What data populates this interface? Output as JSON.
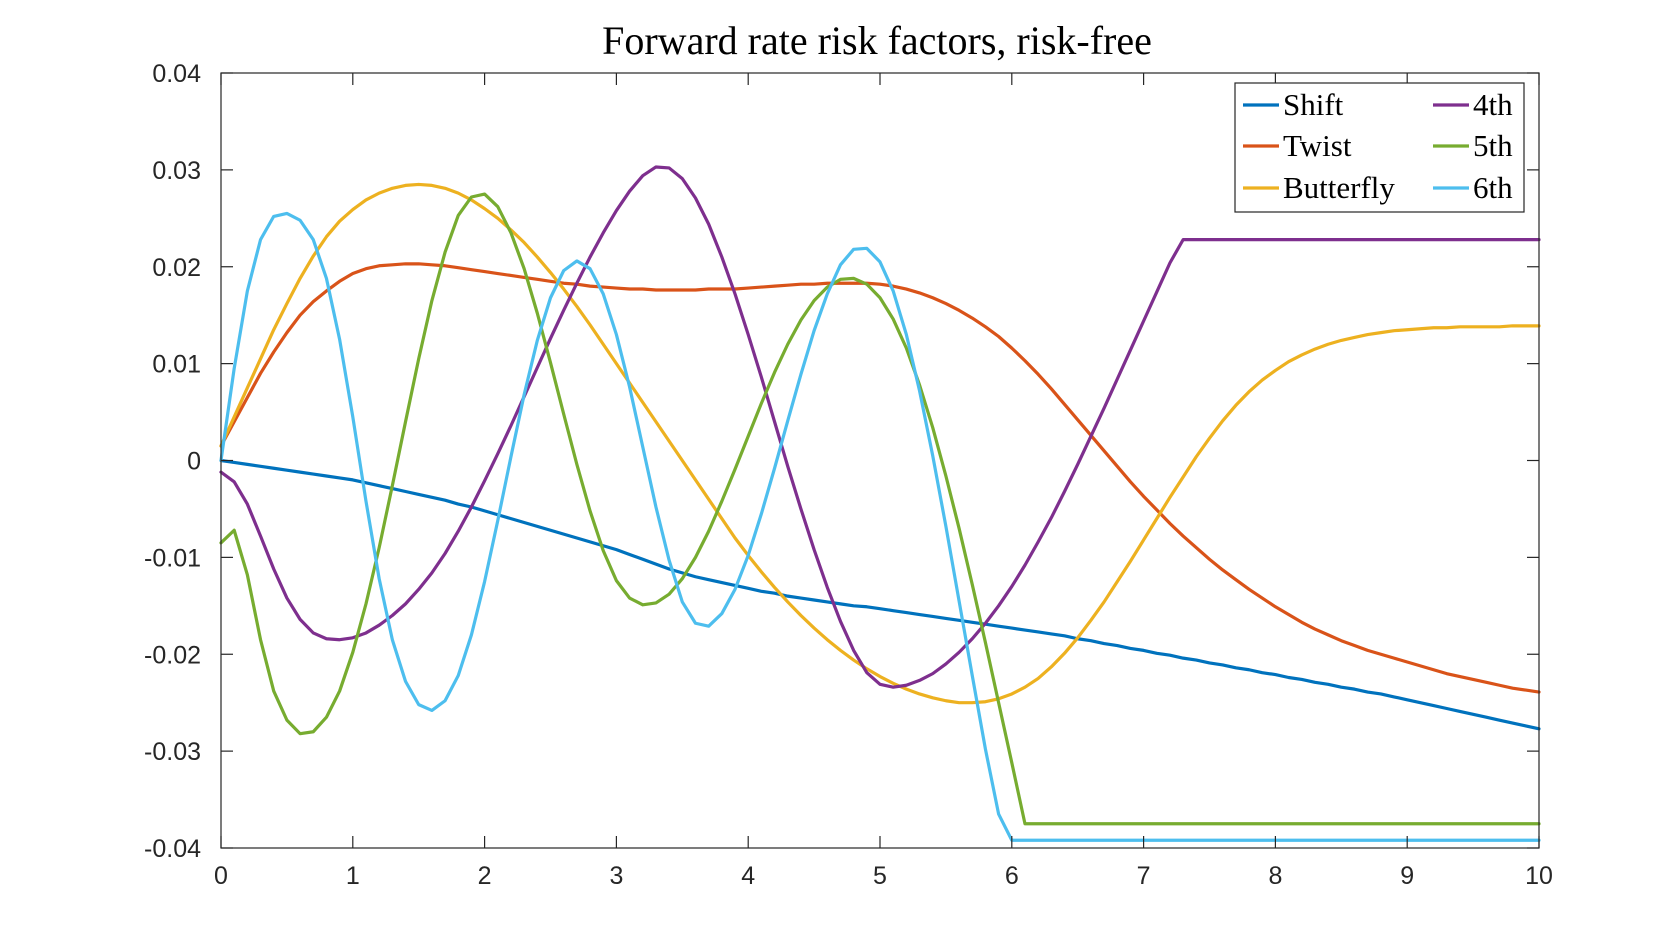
{
  "chart_data": {
    "type": "line",
    "title": "Forward rate risk factors, risk-free",
    "xlabel": "",
    "ylabel": "",
    "xlim": [
      0,
      10
    ],
    "ylim": [
      -0.04,
      0.04
    ],
    "xticks": [
      0,
      1,
      2,
      3,
      4,
      5,
      6,
      7,
      8,
      9,
      10
    ],
    "yticks": [
      -0.04,
      -0.03,
      -0.02,
      -0.01,
      0,
      0.01,
      0.02,
      0.03,
      0.04
    ],
    "xtick_labels": [
      "0",
      "1",
      "2",
      "3",
      "4",
      "5",
      "6",
      "7",
      "8",
      "9",
      "10"
    ],
    "ytick_labels": [
      "-0.04",
      "-0.03",
      "-0.02",
      "-0.01",
      "0",
      "0.01",
      "0.02",
      "0.03",
      "0.04"
    ],
    "grid": false,
    "legend_position": "top-right",
    "x": [
      0,
      0.1,
      0.2,
      0.3,
      0.4,
      0.5,
      0.6,
      0.7,
      0.8,
      0.9,
      1.0,
      1.1,
      1.2,
      1.3,
      1.4,
      1.5,
      1.6,
      1.7,
      1.8,
      1.9,
      2.0,
      2.1,
      2.2,
      2.3,
      2.4,
      2.5,
      2.6,
      2.7,
      2.8,
      2.9,
      3.0,
      3.1,
      3.2,
      3.3,
      3.4,
      3.5,
      3.6,
      3.7,
      3.8,
      3.9,
      4.0,
      4.1,
      4.2,
      4.3,
      4.4,
      4.5,
      4.6,
      4.7,
      4.8,
      4.9,
      5.0,
      5.1,
      5.2,
      5.3,
      5.4,
      5.5,
      5.6,
      5.7,
      5.8,
      5.9,
      6.0,
      6.1,
      6.2,
      6.3,
      6.4,
      6.5,
      6.6,
      6.7,
      6.8,
      6.9,
      7.0,
      7.1,
      7.2,
      7.3,
      7.4,
      7.5,
      7.6,
      7.7,
      7.8,
      7.9,
      8.0,
      8.1,
      8.2,
      8.3,
      8.4,
      8.5,
      8.6,
      8.7,
      8.8,
      8.9,
      9.0,
      9.1,
      9.2,
      9.3,
      9.4,
      9.5,
      9.6,
      9.7,
      9.8,
      9.9,
      10.0
    ],
    "series": [
      {
        "name": "Shift",
        "color": "#0072BD",
        "values": [
          0.0,
          -0.0002,
          -0.0004,
          -0.0006,
          -0.0008,
          -0.001,
          -0.0012,
          -0.0014,
          -0.0016,
          -0.0018,
          -0.002,
          -0.0023,
          -0.0026,
          -0.0029,
          -0.0032,
          -0.0035,
          -0.0038,
          -0.0041,
          -0.0045,
          -0.0048,
          -0.0052,
          -0.0056,
          -0.006,
          -0.0064,
          -0.0068,
          -0.0072,
          -0.0076,
          -0.008,
          -0.0084,
          -0.0088,
          -0.0092,
          -0.0097,
          -0.0102,
          -0.0107,
          -0.0112,
          -0.0116,
          -0.012,
          -0.0123,
          -0.0126,
          -0.0129,
          -0.0132,
          -0.0135,
          -0.0137,
          -0.014,
          -0.0142,
          -0.0144,
          -0.0146,
          -0.0148,
          -0.015,
          -0.0151,
          -0.0153,
          -0.0155,
          -0.0157,
          -0.0159,
          -0.0161,
          -0.0163,
          -0.0165,
          -0.0167,
          -0.0169,
          -0.0171,
          -0.0173,
          -0.0175,
          -0.0177,
          -0.0179,
          -0.0181,
          -0.0184,
          -0.0186,
          -0.0189,
          -0.0191,
          -0.0194,
          -0.0196,
          -0.0199,
          -0.0201,
          -0.0204,
          -0.0206,
          -0.0209,
          -0.0211,
          -0.0214,
          -0.0216,
          -0.0219,
          -0.0221,
          -0.0224,
          -0.0226,
          -0.0229,
          -0.0231,
          -0.0234,
          -0.0236,
          -0.0239,
          -0.0241,
          -0.0244,
          -0.0247,
          -0.025,
          -0.0253,
          -0.0256,
          -0.0259,
          -0.0262,
          -0.0265,
          -0.0268,
          -0.0271,
          -0.0274,
          -0.0277
        ]
      },
      {
        "name": "Twist",
        "color": "#D95319",
        "values": [
          0.0015,
          0.004,
          0.0065,
          0.009,
          0.0112,
          0.0132,
          0.015,
          0.0164,
          0.0175,
          0.0185,
          0.0193,
          0.0198,
          0.0201,
          0.0202,
          0.0203,
          0.0203,
          0.0202,
          0.0201,
          0.0199,
          0.0197,
          0.0195,
          0.0193,
          0.0191,
          0.0189,
          0.0187,
          0.0185,
          0.0183,
          0.0182,
          0.018,
          0.0179,
          0.0178,
          0.0177,
          0.0177,
          0.0176,
          0.0176,
          0.0176,
          0.0176,
          0.0177,
          0.0177,
          0.0177,
          0.0178,
          0.0179,
          0.018,
          0.0181,
          0.0182,
          0.0182,
          0.0183,
          0.0183,
          0.0183,
          0.0183,
          0.0182,
          0.018,
          0.0177,
          0.0173,
          0.0168,
          0.0162,
          0.0155,
          0.0147,
          0.0138,
          0.0128,
          0.0116,
          0.0103,
          0.0089,
          0.0074,
          0.0058,
          0.0042,
          0.0026,
          0.001,
          -0.0006,
          -0.0022,
          -0.0037,
          -0.0051,
          -0.0065,
          -0.0078,
          -0.009,
          -0.0102,
          -0.0113,
          -0.0123,
          -0.0133,
          -0.0142,
          -0.0151,
          -0.0159,
          -0.0167,
          -0.0174,
          -0.018,
          -0.0186,
          -0.0191,
          -0.0196,
          -0.02,
          -0.0204,
          -0.0208,
          -0.0212,
          -0.0216,
          -0.022,
          -0.0223,
          -0.0226,
          -0.0229,
          -0.0232,
          -0.0235,
          -0.0237,
          -0.0239
        ]
      },
      {
        "name": "Butterfly",
        "color": "#EDB120",
        "values": [
          0.0015,
          0.0045,
          0.0075,
          0.0105,
          0.0135,
          0.0162,
          0.0188,
          0.0211,
          0.0231,
          0.0247,
          0.0259,
          0.0269,
          0.0276,
          0.0281,
          0.0284,
          0.0285,
          0.0284,
          0.0281,
          0.0276,
          0.0269,
          0.026,
          0.025,
          0.0238,
          0.0225,
          0.021,
          0.0194,
          0.0177,
          0.0159,
          0.014,
          0.012,
          0.01,
          0.008,
          0.006,
          0.004,
          0.002,
          0.0,
          -0.002,
          -0.004,
          -0.006,
          -0.008,
          -0.0098,
          -0.0115,
          -0.0131,
          -0.0146,
          -0.016,
          -0.0173,
          -0.0185,
          -0.0196,
          -0.0206,
          -0.0215,
          -0.0223,
          -0.023,
          -0.0236,
          -0.0241,
          -0.0245,
          -0.0248,
          -0.025,
          -0.025,
          -0.0249,
          -0.0246,
          -0.0241,
          -0.0234,
          -0.0225,
          -0.0213,
          -0.0199,
          -0.0183,
          -0.0165,
          -0.0146,
          -0.0125,
          -0.0104,
          -0.0082,
          -0.006,
          -0.0038,
          -0.0017,
          0.0004,
          0.0023,
          0.0041,
          0.0057,
          0.0071,
          0.0083,
          0.0093,
          0.0102,
          0.0109,
          0.0115,
          0.012,
          0.0124,
          0.0127,
          0.013,
          0.0132,
          0.0134,
          0.0135,
          0.0136,
          0.0137,
          0.0137,
          0.0138,
          0.0138,
          0.0138,
          0.0138,
          0.0139,
          0.0139,
          0.0139
        ]
      },
      {
        "name": "4th",
        "color": "#7E2F8E",
        "values": [
          -0.0012,
          -0.0022,
          -0.0045,
          -0.0078,
          -0.0112,
          -0.0142,
          -0.0164,
          -0.0178,
          -0.0184,
          -0.0185,
          -0.0183,
          -0.0178,
          -0.017,
          -0.016,
          -0.0148,
          -0.0133,
          -0.0116,
          -0.0096,
          -0.0073,
          -0.0048,
          -0.0021,
          0.0007,
          0.0036,
          0.0066,
          0.0096,
          0.0126,
          0.0155,
          0.0183,
          0.021,
          0.0235,
          0.0258,
          0.0278,
          0.0294,
          0.0303,
          0.0302,
          0.0291,
          0.0271,
          0.0244,
          0.021,
          0.0172,
          0.013,
          0.0086,
          0.004,
          -0.0006,
          -0.005,
          -0.0092,
          -0.0131,
          -0.0166,
          -0.0196,
          -0.0219,
          -0.0231,
          -0.0234,
          -0.0232,
          -0.0227,
          -0.022,
          -0.021,
          -0.0198,
          -0.0184,
          -0.0168,
          -0.015,
          -0.013,
          -0.0108,
          -0.0084,
          -0.0059,
          -0.0032,
          -0.0004,
          0.0025,
          0.0054,
          0.0084,
          0.0114,
          0.0144,
          0.0174,
          0.0204,
          0.0228,
          0.0228,
          0.0228,
          0.0228,
          0.0228,
          0.0228,
          0.0228,
          0.0228,
          0.0228,
          0.0228,
          0.0228,
          0.0228,
          0.0228,
          0.0228,
          0.0228,
          0.0228,
          0.0228,
          0.0228,
          0.0228,
          0.0228,
          0.0228,
          0.0228,
          0.0228,
          0.0228,
          0.0228,
          0.0228,
          0.0228,
          0.0228
        ]
      },
      {
        "name": "5th",
        "color": "#77AC30",
        "values": [
          -0.0085,
          -0.0072,
          -0.0118,
          -0.0185,
          -0.0238,
          -0.0268,
          -0.0282,
          -0.028,
          -0.0265,
          -0.0238,
          -0.0198,
          -0.0148,
          -0.009,
          -0.0026,
          0.004,
          0.0105,
          0.0165,
          0.0215,
          0.0253,
          0.0272,
          0.0275,
          0.0262,
          0.0235,
          0.0198,
          0.0152,
          0.0101,
          0.0048,
          -0.0004,
          -0.0052,
          -0.0093,
          -0.0124,
          -0.0142,
          -0.0149,
          -0.0147,
          -0.0138,
          -0.0122,
          -0.01,
          -0.0073,
          -0.0042,
          -0.0009,
          0.0025,
          0.0059,
          0.0091,
          0.012,
          0.0145,
          0.0165,
          0.0179,
          0.0187,
          0.0188,
          0.0182,
          0.0168,
          0.0146,
          0.0116,
          0.0078,
          0.0034,
          -0.0016,
          -0.007,
          -0.0128,
          -0.0188,
          -0.025,
          -0.0312,
          -0.0375,
          -0.0375,
          -0.0375,
          -0.0375,
          -0.0375,
          -0.0375,
          -0.0375,
          -0.0375,
          -0.0375,
          -0.0375,
          -0.0375,
          -0.0375,
          -0.0375,
          -0.0375,
          -0.0375,
          -0.0375,
          -0.0375,
          -0.0375,
          -0.0375,
          -0.0375,
          -0.0375,
          -0.0375,
          -0.0375,
          -0.0375,
          -0.0375,
          -0.0375,
          -0.0375,
          -0.0375,
          -0.0375,
          -0.0375,
          -0.0375,
          -0.0375,
          -0.0375,
          -0.0375,
          -0.0375,
          -0.0375,
          -0.0375,
          -0.0375,
          -0.0375,
          -0.0375
        ]
      },
      {
        "name": "6th",
        "color": "#4DBEEE",
        "values": [
          0.0,
          0.0095,
          0.0175,
          0.0228,
          0.0252,
          0.0255,
          0.0248,
          0.0228,
          0.0188,
          0.0125,
          0.0045,
          -0.0042,
          -0.0122,
          -0.0185,
          -0.0228,
          -0.0252,
          -0.0258,
          -0.0248,
          -0.0222,
          -0.018,
          -0.0125,
          -0.0062,
          0.0004,
          0.0068,
          0.0124,
          0.0168,
          0.0196,
          0.0206,
          0.0198,
          0.0172,
          0.013,
          0.0076,
          0.0014,
          -0.0048,
          -0.0103,
          -0.0146,
          -0.0168,
          -0.0171,
          -0.0158,
          -0.0133,
          -0.0098,
          -0.0055,
          -0.0008,
          0.0041,
          0.0089,
          0.0134,
          0.0172,
          0.0202,
          0.0218,
          0.0219,
          0.0205,
          0.0175,
          0.013,
          0.0072,
          0.0005,
          -0.0068,
          -0.0145,
          -0.0222,
          -0.0298,
          -0.0365,
          -0.0392,
          -0.0392,
          -0.0392,
          -0.0392,
          -0.0392,
          -0.0392,
          -0.0392,
          -0.0392,
          -0.0392,
          -0.0392,
          -0.0392,
          -0.0392,
          -0.0392,
          -0.0392,
          -0.0392,
          -0.0392,
          -0.0392,
          -0.0392,
          -0.0392,
          -0.0392,
          -0.0392,
          -0.0392,
          -0.0392,
          -0.0392,
          -0.0392,
          -0.0392,
          -0.0392,
          -0.0392,
          -0.0392,
          -0.0392,
          -0.0392,
          -0.0392,
          -0.0392,
          -0.0392,
          -0.0392,
          -0.0392,
          -0.0392,
          -0.0392,
          -0.0392,
          -0.0392,
          -0.0392
        ]
      }
    ]
  }
}
